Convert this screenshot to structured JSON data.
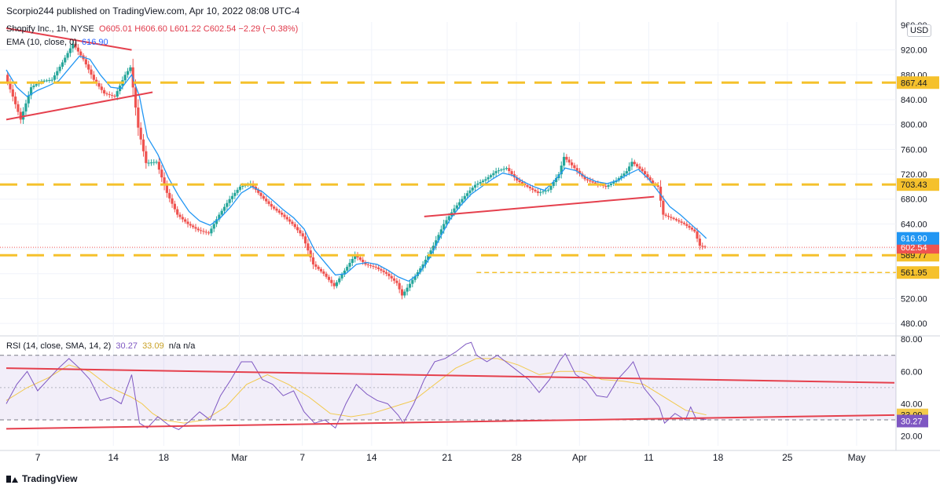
{
  "header": {
    "published": "Scorpio244 published on TradingView.com, Apr 10, 2022 08:08 UTC-4"
  },
  "legend": {
    "symbol": "Shopify Inc., 1h, NYSE",
    "o": "O605.01",
    "h": "H606.60",
    "l": "L601.22",
    "c": "C602.54",
    "chg": "−2.29 (−0.38%)",
    "ema_label": "EMA (10, close, 0)",
    "ema_value": "616.90",
    "rsi_label": "RSI (14, close, SMA, 14, 2)",
    "rsi_value": "30.27",
    "rsi_sma_value": "33.09",
    "rsi_na": "n/a  n/a"
  },
  "currency": "USD",
  "brand": "TradingView",
  "colors": {
    "up": "#26a69a",
    "down": "#ef5350",
    "ema": "#2196f3",
    "rsi": "#7e57c2",
    "rsi_ma": "#f2c94c",
    "trend": "#e5404d",
    "level": "#f5c12c"
  },
  "chart_data": {
    "type": "candlestick",
    "price_ticks": [
      480,
      520,
      560,
      600,
      640,
      680,
      720,
      760,
      800,
      840,
      880,
      920,
      960
    ],
    "price_tick_labels": [
      "480.00",
      "520.00",
      "560.00",
      "600.00",
      "640.00",
      "680.00",
      "720.00",
      "760.00",
      "800.00",
      "840.00",
      "880.00",
      "920.00",
      "960.00"
    ],
    "price_ylim": [
      460,
      965
    ],
    "x_labels": [
      "7",
      "14",
      "18",
      "Mar",
      "7",
      "14",
      "21",
      "28",
      "Apr",
      "11",
      "18",
      "25",
      "May"
    ],
    "price_path": [
      [
        0,
        880
      ],
      [
        1.5,
        845
      ],
      [
        3,
        808
      ],
      [
        5,
        860
      ],
      [
        7,
        870
      ],
      [
        9,
        872
      ],
      [
        11,
        900
      ],
      [
        13,
        930
      ],
      [
        15,
        905
      ],
      [
        17,
        872
      ],
      [
        19,
        850
      ],
      [
        21,
        845
      ],
      [
        23,
        880
      ],
      [
        24,
        892
      ],
      [
        25.5,
        795
      ],
      [
        27,
        738
      ],
      [
        29,
        740
      ],
      [
        31,
        690
      ],
      [
        33,
        655
      ],
      [
        35,
        640
      ],
      [
        37,
        630
      ],
      [
        39,
        625
      ],
      [
        41,
        655
      ],
      [
        43,
        680
      ],
      [
        45,
        700
      ],
      [
        47,
        705
      ],
      [
        49,
        685
      ],
      [
        51,
        668
      ],
      [
        53,
        655
      ],
      [
        55,
        640
      ],
      [
        57,
        620
      ],
      [
        59,
        575
      ],
      [
        61,
        560
      ],
      [
        63,
        540
      ],
      [
        65,
        565
      ],
      [
        67,
        590
      ],
      [
        69,
        575
      ],
      [
        71,
        570
      ],
      [
        73,
        560
      ],
      [
        75,
        545
      ],
      [
        76,
        525
      ],
      [
        78,
        550
      ],
      [
        80,
        575
      ],
      [
        82,
        605
      ],
      [
        84,
        640
      ],
      [
        86,
        665
      ],
      [
        88,
        685
      ],
      [
        90,
        703
      ],
      [
        92,
        712
      ],
      [
        94,
        725
      ],
      [
        96,
        730
      ],
      [
        98,
        710
      ],
      [
        100,
        700
      ],
      [
        102,
        690
      ],
      [
        104,
        695
      ],
      [
        106,
        720
      ],
      [
        107,
        748
      ],
      [
        109,
        730
      ],
      [
        111,
        712
      ],
      [
        113,
        705
      ],
      [
        115,
        700
      ],
      [
        117,
        710
      ],
      [
        119,
        725
      ],
      [
        120,
        740
      ],
      [
        122,
        725
      ],
      [
        124,
        705
      ],
      [
        125,
        700
      ],
      [
        126,
        655
      ],
      [
        128,
        648
      ],
      [
        130,
        640
      ],
      [
        132,
        628
      ],
      [
        133,
        605
      ],
      [
        134,
        602.54
      ]
    ],
    "ema_path": [
      [
        0,
        888
      ],
      [
        2,
        860
      ],
      [
        4,
        845
      ],
      [
        6,
        855
      ],
      [
        8,
        862
      ],
      [
        10,
        870
      ],
      [
        12,
        890
      ],
      [
        14,
        910
      ],
      [
        16,
        905
      ],
      [
        18,
        880
      ],
      [
        20,
        860
      ],
      [
        22,
        858
      ],
      [
        24,
        880
      ],
      [
        25.5,
        845
      ],
      [
        27,
        780
      ],
      [
        29,
        752
      ],
      [
        31,
        715
      ],
      [
        33,
        685
      ],
      [
        35,
        660
      ],
      [
        37,
        645
      ],
      [
        39,
        638
      ],
      [
        41,
        650
      ],
      [
        43,
        668
      ],
      [
        45,
        690
      ],
      [
        47,
        700
      ],
      [
        49,
        692
      ],
      [
        51,
        678
      ],
      [
        53,
        663
      ],
      [
        55,
        650
      ],
      [
        57,
        632
      ],
      [
        59,
        598
      ],
      [
        61,
        578
      ],
      [
        63,
        558
      ],
      [
        65,
        560
      ],
      [
        67,
        575
      ],
      [
        69,
        578
      ],
      [
        71,
        575
      ],
      [
        73,
        566
      ],
      [
        75,
        555
      ],
      [
        77,
        548
      ],
      [
        79,
        560
      ],
      [
        81,
        585
      ],
      [
        83,
        618
      ],
      [
        85,
        648
      ],
      [
        87,
        670
      ],
      [
        89,
        688
      ],
      [
        91,
        700
      ],
      [
        93,
        712
      ],
      [
        95,
        722
      ],
      [
        97,
        718
      ],
      [
        99,
        708
      ],
      [
        101,
        700
      ],
      [
        103,
        694
      ],
      [
        105,
        710
      ],
      [
        107,
        730
      ],
      [
        109,
        726
      ],
      [
        111,
        715
      ],
      [
        113,
        708
      ],
      [
        115,
        705
      ],
      [
        117,
        710
      ],
      [
        119,
        720
      ],
      [
        121,
        728
      ],
      [
        123,
        712
      ],
      [
        125,
        690
      ],
      [
        127,
        668
      ],
      [
        129,
        655
      ],
      [
        131,
        640
      ],
      [
        133,
        625
      ],
      [
        134,
        616.9
      ]
    ],
    "levels": [
      {
        "value": 867.44,
        "label": "867.44",
        "style": "dashed-thick"
      },
      {
        "value": 703.43,
        "label": "703.43",
        "style": "dashed-thick"
      },
      {
        "value": 589.77,
        "label": "589.77",
        "style": "dashed-thick"
      },
      {
        "value": 561.95,
        "label": "561.95",
        "style": "dashed-thin"
      }
    ],
    "last_price": {
      "value": 602.54,
      "label": "602.54"
    },
    "ema_last": {
      "value": 616.9,
      "label": "616.90"
    },
    "trendlines": [
      {
        "from": [
          0,
          955
        ],
        "to": [
          24,
          920
        ]
      },
      {
        "from": [
          0,
          808
        ],
        "to": [
          28,
          852
        ]
      },
      {
        "from": [
          80,
          652
        ],
        "to": [
          124,
          684
        ]
      }
    ],
    "rsi_ticks": [
      20,
      40,
      60,
      80
    ],
    "rsi_tick_labels": [
      "20.00",
      "40.00",
      "60.00",
      "80.00"
    ],
    "rsi_ylim": [
      14,
      82
    ],
    "rsi_band": [
      30,
      70
    ],
    "rsi_last": {
      "value": 30.27,
      "label": "30.27"
    },
    "rsi_ma_last": {
      "value": 33.09,
      "label": "33.09"
    },
    "rsi_path": [
      [
        0,
        40
      ],
      [
        2,
        52
      ],
      [
        4,
        60
      ],
      [
        6,
        48
      ],
      [
        8,
        55
      ],
      [
        10,
        62
      ],
      [
        12,
        68
      ],
      [
        14,
        62
      ],
      [
        16,
        55
      ],
      [
        18,
        42
      ],
      [
        20,
        44
      ],
      [
        22,
        40
      ],
      [
        24,
        58
      ],
      [
        25.5,
        28
      ],
      [
        27,
        25
      ],
      [
        29,
        32
      ],
      [
        31,
        27
      ],
      [
        33,
        24
      ],
      [
        35,
        29
      ],
      [
        37,
        35
      ],
      [
        39,
        30
      ],
      [
        41,
        45
      ],
      [
        43,
        55
      ],
      [
        45,
        66
      ],
      [
        47,
        66
      ],
      [
        49,
        55
      ],
      [
        51,
        52
      ],
      [
        53,
        45
      ],
      [
        55,
        48
      ],
      [
        57,
        35
      ],
      [
        59,
        28
      ],
      [
        61,
        30
      ],
      [
        63,
        25
      ],
      [
        65,
        40
      ],
      [
        67,
        52
      ],
      [
        69,
        46
      ],
      [
        71,
        42
      ],
      [
        73,
        40
      ],
      [
        75,
        33
      ],
      [
        76,
        28
      ],
      [
        78,
        40
      ],
      [
        80,
        55
      ],
      [
        82,
        66
      ],
      [
        84,
        68
      ],
      [
        86,
        72
      ],
      [
        88,
        77
      ],
      [
        89,
        78
      ],
      [
        90,
        70
      ],
      [
        92,
        66
      ],
      [
        94,
        70
      ],
      [
        96,
        65
      ],
      [
        98,
        60
      ],
      [
        100,
        55
      ],
      [
        102,
        47
      ],
      [
        104,
        55
      ],
      [
        106,
        67
      ],
      [
        107,
        71
      ],
      [
        109,
        58
      ],
      [
        111,
        54
      ],
      [
        113,
        45
      ],
      [
        115,
        44
      ],
      [
        117,
        55
      ],
      [
        119,
        62
      ],
      [
        120,
        66
      ],
      [
        122,
        50
      ],
      [
        124,
        42
      ],
      [
        125,
        38
      ],
      [
        126,
        28
      ],
      [
        128,
        34
      ],
      [
        130,
        30
      ],
      [
        131,
        38
      ],
      [
        132,
        31
      ],
      [
        134,
        30.27
      ]
    ],
    "rsi_ma_path": [
      [
        0,
        42
      ],
      [
        4,
        50
      ],
      [
        8,
        56
      ],
      [
        12,
        64
      ],
      [
        16,
        60
      ],
      [
        20,
        50
      ],
      [
        24,
        44
      ],
      [
        26,
        40
      ],
      [
        28,
        34
      ],
      [
        30,
        30
      ],
      [
        34,
        28
      ],
      [
        38,
        30
      ],
      [
        42,
        38
      ],
      [
        46,
        52
      ],
      [
        50,
        58
      ],
      [
        54,
        52
      ],
      [
        58,
        44
      ],
      [
        62,
        34
      ],
      [
        66,
        32
      ],
      [
        70,
        34
      ],
      [
        74,
        38
      ],
      [
        78,
        42
      ],
      [
        82,
        52
      ],
      [
        86,
        62
      ],
      [
        90,
        68
      ],
      [
        94,
        68
      ],
      [
        98,
        64
      ],
      [
        102,
        58
      ],
      [
        106,
        60
      ],
      [
        110,
        60
      ],
      [
        114,
        55
      ],
      [
        118,
        54
      ],
      [
        122,
        52
      ],
      [
        126,
        44
      ],
      [
        130,
        36
      ],
      [
        134,
        33.09
      ]
    ],
    "rsi_trendlines": [
      {
        "from": [
          0,
          62
        ],
        "to": [
          170,
          53
        ]
      },
      {
        "from": [
          0,
          24.5
        ],
        "to": [
          170,
          33
        ]
      }
    ]
  }
}
